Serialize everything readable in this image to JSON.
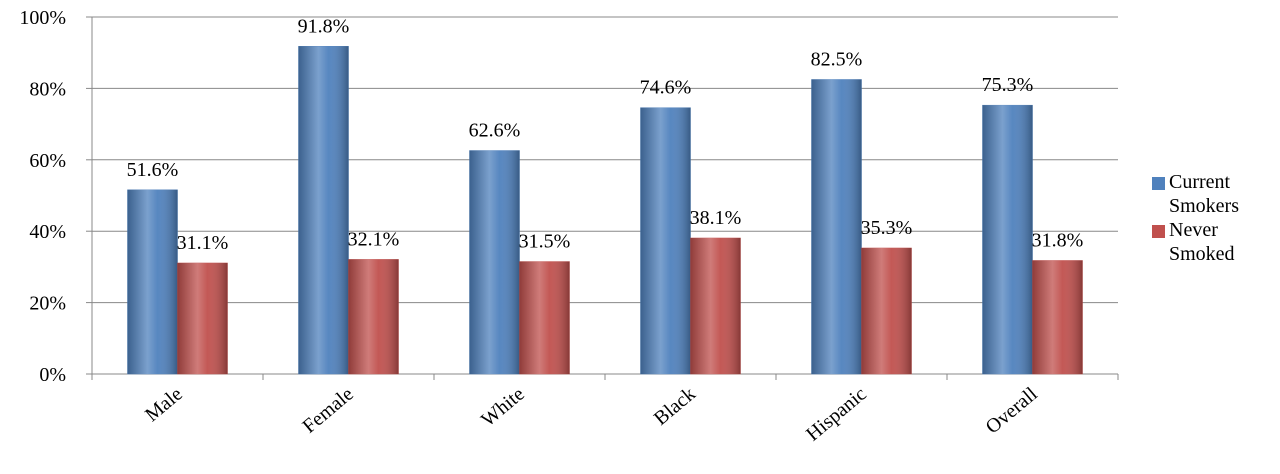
{
  "chart_data": {
    "type": "bar",
    "categories": [
      "Male",
      "Female",
      "White",
      "Black",
      "Hispanic",
      "Overall"
    ],
    "series": [
      {
        "name": "Current Smokers",
        "color": "#4f81bd",
        "values": [
          51.6,
          91.8,
          62.6,
          74.6,
          82.5,
          75.3
        ],
        "value_labels": [
          "51.6%",
          "91.8%",
          "62.6%",
          "74.6%",
          "82.5%",
          "75.3%"
        ]
      },
      {
        "name": "Never Smoked",
        "color": "#c0504d",
        "values": [
          31.1,
          32.1,
          31.5,
          38.1,
          35.3,
          31.8
        ],
        "value_labels": [
          "31.1%",
          "32.1%",
          "31.5%",
          "38.1%",
          "35.3%",
          "31.8%"
        ]
      }
    ],
    "ylim": [
      0,
      100
    ],
    "yticks": [
      {
        "value": 0,
        "label": "0%"
      },
      {
        "value": 20,
        "label": "20%"
      },
      {
        "value": 40,
        "label": "40%"
      },
      {
        "value": 60,
        "label": "60%"
      },
      {
        "value": 80,
        "label": "80%"
      },
      {
        "value": 100,
        "label": "100%"
      }
    ],
    "grid": true,
    "legend": "right"
  }
}
